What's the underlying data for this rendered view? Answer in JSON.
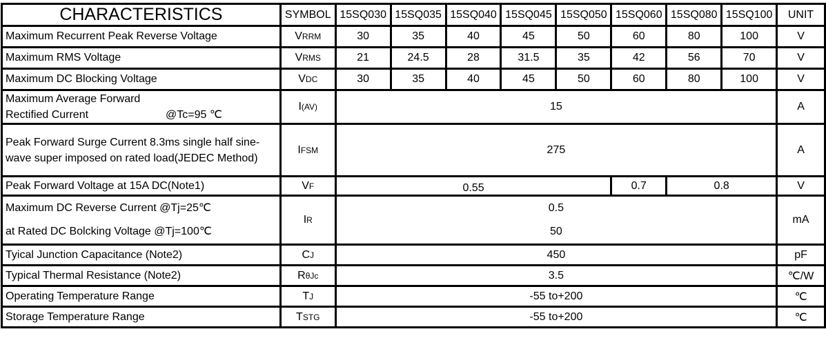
{
  "header": {
    "title": "CHARACTERISTICS",
    "symbol": "SYMBOL",
    "models": [
      "15SQ030",
      "15SQ035",
      "15SQ040",
      "15SQ045",
      "15SQ050",
      "15SQ060",
      "15SQ080",
      "15SQ100"
    ],
    "unit": "UNIT"
  },
  "rows": [
    {
      "label": "Maximum Recurrent Peak Reverse Voltage",
      "sym": "V",
      "sub": "RRM",
      "values": [
        "30",
        "35",
        "40",
        "45",
        "50",
        "60",
        "80",
        "100"
      ],
      "unit": "V"
    },
    {
      "label": "Maximum RMS Voltage",
      "sym": "V",
      "sub": "RMS",
      "values": [
        "21",
        "24.5",
        "28",
        "31.5",
        "35",
        "42",
        "56",
        "70"
      ],
      "unit": "V"
    },
    {
      "label": "Maximum DC Blocking Voltage",
      "sym": "V",
      "sub": "DC",
      "values": [
        "30",
        "35",
        "40",
        "45",
        "50",
        "60",
        "80",
        "100"
      ],
      "unit": "V"
    }
  ],
  "iav": {
    "label1": "Maximum Average Forward",
    "label2": "Rectified Current",
    "cond": "@Tc=95 ℃",
    "sym": "I",
    "sub": "(AV)",
    "value": "15",
    "unit": "A"
  },
  "ifsm": {
    "label1": "Peak Forward Surge Current 8.3ms single half sine-",
    "label2": "wave super imposed on rated load(JEDEC Method)",
    "sym": "I",
    "sub": "FSM",
    "value": "275",
    "unit": "A"
  },
  "vf": {
    "label": "Peak Forward Voltage at 15A DC(Note1)",
    "sym": "V",
    "sub": "F",
    "values": [
      "0.55",
      "0.7",
      "0.8"
    ],
    "unit": "V"
  },
  "ir": {
    "label1": "Maximum DC Reverse Current  @Tj=25℃",
    "label2": "at Rated DC Bolcking Voltage   @Tj=100℃",
    "sym": "I",
    "sub": "R",
    "value1": "0.5",
    "value2": "50",
    "unit": "mA"
  },
  "cj": {
    "label": "Tyical Junction  Capacitance (Note2)",
    "sym": "C",
    "sub": "J",
    "value": "450",
    "unit": "pF"
  },
  "rth": {
    "label": "Typical Thermal Resistance (Note2)",
    "sym": "R",
    "sub": "θJc",
    "value": "3.5",
    "unit": "℃/W"
  },
  "tj": {
    "label": "Operating Temperature Range",
    "sym": "T",
    "sub": "J",
    "value": "-55 to+200",
    "unit": "℃"
  },
  "tstg": {
    "label": "Storage Temperature Range",
    "sym": "T",
    "sub": "STG",
    "value": "-55 to+200",
    "unit": "℃"
  }
}
